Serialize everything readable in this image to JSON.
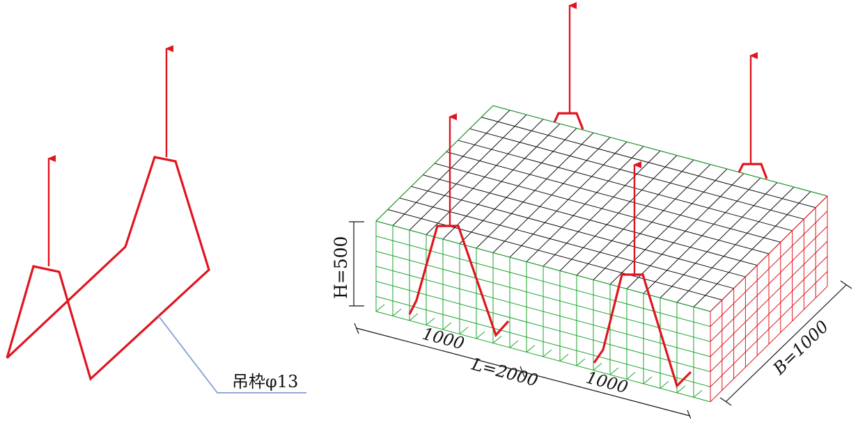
{
  "labels": {
    "hook_callout": "吊枠φ13",
    "height": "H=500",
    "length": "L=2000",
    "breadth": "B=1000",
    "seg_left": "1000",
    "seg_right": "1000"
  },
  "colors": {
    "hook": "#e0141e",
    "top_grid": "#111111",
    "front_grid": "#1aa52a",
    "side_grid": "#e0141e",
    "leader": "#8fa8d8",
    "dimension": "#111111"
  },
  "grid_counts": {
    "length_cells": 20,
    "breadth_cells": 10,
    "height_cells": 6
  }
}
